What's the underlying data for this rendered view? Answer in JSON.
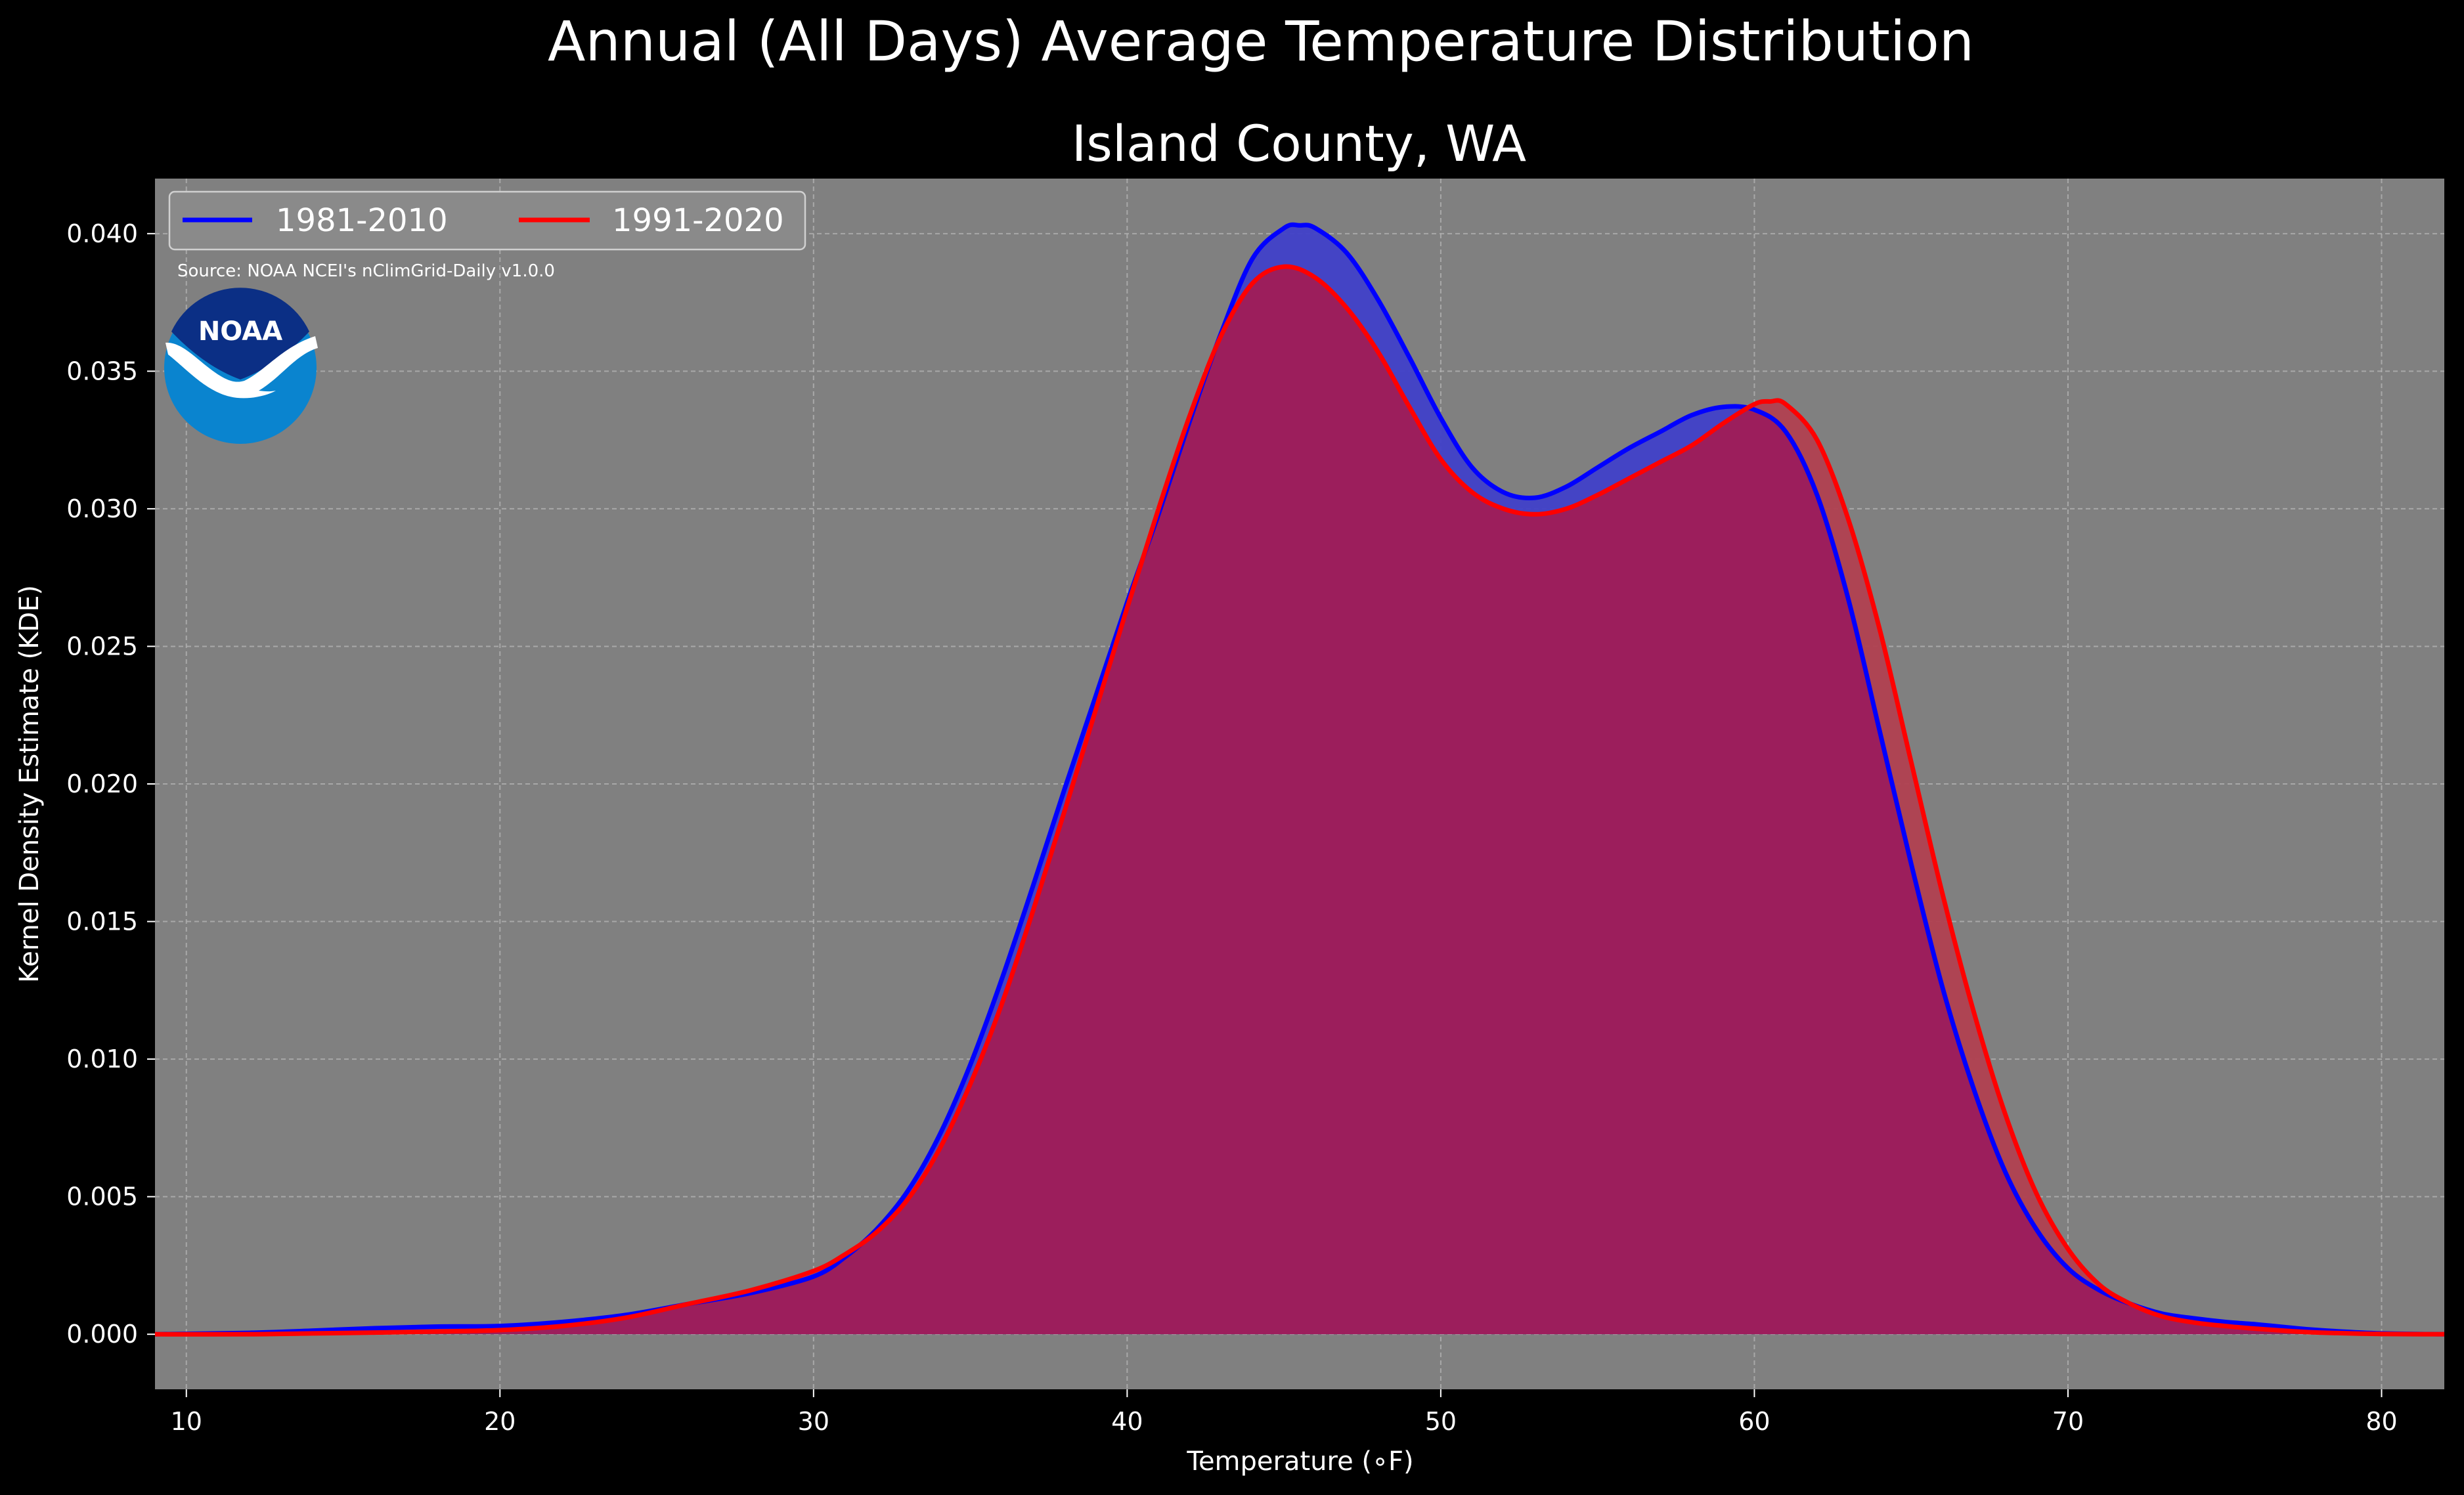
{
  "figure": {
    "title": "Annual (All Days) Average Temperature Distribution",
    "subtitle": "Island County, WA",
    "source": "Source: NOAA NCEI's nClimGrid-Daily v1.0.0",
    "logo_text": "NOAA"
  },
  "colors": {
    "figure_background": "#000000",
    "plot_background": "#808080",
    "grid": "#b3b3b3",
    "series_1981_2010": "#0000ff",
    "series_1991_2020": "#ff0000",
    "fill_1981_2010": "#4040c8",
    "fill_1991_2020": "#b04050",
    "overlap_fill": "#9c1e5c",
    "noaa_blue_light": "#0a84cf",
    "noaa_blue_dark": "#0b2f85"
  },
  "chart_data": {
    "type": "area",
    "title": "Island County, WA",
    "xlabel": "Temperature ($^\\circ$F)",
    "xlabel_display": "Temperature (∘F)",
    "ylabel": "Kernel Density Estimate (KDE)",
    "xlim": [
      9,
      82
    ],
    "ylim": [
      -0.002,
      0.042
    ],
    "x_ticks": [
      10,
      20,
      30,
      40,
      50,
      60,
      70,
      80
    ],
    "x_tick_labels": [
      "10",
      "20",
      "30",
      "40",
      "50",
      "60",
      "70",
      "80"
    ],
    "y_ticks": [
      0.0,
      0.005,
      0.01,
      0.015,
      0.02,
      0.025,
      0.03,
      0.035,
      0.04
    ],
    "y_tick_labels": [
      "0.000",
      "0.005",
      "0.010",
      "0.015",
      "0.020",
      "0.025",
      "0.030",
      "0.035",
      "0.040"
    ],
    "grid": true,
    "legend_position": "top-left",
    "legend_columns": 2,
    "series": [
      {
        "name": "1981-2010",
        "color": "#0000ff",
        "points": [
          [
            9,
            0.0
          ],
          [
            12,
            5e-05
          ],
          [
            14,
            0.00013
          ],
          [
            16,
            0.00022
          ],
          [
            18,
            0.00028
          ],
          [
            20,
            0.0003
          ],
          [
            22,
            0.00045
          ],
          [
            24,
            0.0007
          ],
          [
            26,
            0.0011
          ],
          [
            28,
            0.0015
          ],
          [
            30,
            0.0021
          ],
          [
            31,
            0.0028
          ],
          [
            32,
            0.0038
          ],
          [
            33,
            0.0052
          ],
          [
            34,
            0.0072
          ],
          [
            35,
            0.0098
          ],
          [
            36,
            0.0129
          ],
          [
            37,
            0.0163
          ],
          [
            38,
            0.0198
          ],
          [
            39,
            0.0232
          ],
          [
            40,
            0.0266
          ],
          [
            41,
            0.0298
          ],
          [
            42,
            0.0332
          ],
          [
            43,
            0.0364
          ],
          [
            44,
            0.0391
          ],
          [
            45,
            0.0402
          ],
          [
            45.5,
            0.0403
          ],
          [
            46,
            0.0402
          ],
          [
            47,
            0.0393
          ],
          [
            48,
            0.0376
          ],
          [
            49,
            0.0355
          ],
          [
            50,
            0.0333
          ],
          [
            51,
            0.0315
          ],
          [
            52,
            0.0306
          ],
          [
            53,
            0.0304
          ],
          [
            54,
            0.0308
          ],
          [
            55,
            0.0315
          ],
          [
            56,
            0.0322
          ],
          [
            57,
            0.0328
          ],
          [
            58,
            0.0334
          ],
          [
            59,
            0.0337
          ],
          [
            60,
            0.0336
          ],
          [
            61,
            0.0328
          ],
          [
            62,
            0.0305
          ],
          [
            63,
            0.0267
          ],
          [
            64,
            0.0219
          ],
          [
            65,
            0.0171
          ],
          [
            66,
            0.0126
          ],
          [
            67,
            0.0089
          ],
          [
            68,
            0.0059
          ],
          [
            69,
            0.0038
          ],
          [
            70,
            0.0024
          ],
          [
            71,
            0.0016
          ],
          [
            72,
            0.0011
          ],
          [
            73,
            0.00075
          ],
          [
            74,
            0.00058
          ],
          [
            75,
            0.00045
          ],
          [
            76,
            0.00036
          ],
          [
            77,
            0.00025
          ],
          [
            78,
            0.00015
          ],
          [
            80,
            3e-05
          ],
          [
            82,
            0.0
          ]
        ]
      },
      {
        "name": "1991-2020",
        "color": "#ff0000",
        "points": [
          [
            9,
            0.0
          ],
          [
            12,
            0.0
          ],
          [
            14,
            3e-05
          ],
          [
            16,
            6e-05
          ],
          [
            18,
            0.0001
          ],
          [
            20,
            0.00015
          ],
          [
            22,
            0.0003
          ],
          [
            24,
            0.0006
          ],
          [
            26,
            0.0011
          ],
          [
            28,
            0.0016
          ],
          [
            30,
            0.0023
          ],
          [
            31,
            0.0029
          ],
          [
            32,
            0.0037
          ],
          [
            33,
            0.0049
          ],
          [
            34,
            0.0067
          ],
          [
            35,
            0.0091
          ],
          [
            36,
            0.012
          ],
          [
            37,
            0.0154
          ],
          [
            38,
            0.019
          ],
          [
            39,
            0.0227
          ],
          [
            40,
            0.0264
          ],
          [
            41,
            0.03
          ],
          [
            42,
            0.0334
          ],
          [
            43,
            0.0363
          ],
          [
            44,
            0.0382
          ],
          [
            45,
            0.0388
          ],
          [
            46,
            0.0384
          ],
          [
            47,
            0.0373
          ],
          [
            48,
            0.0357
          ],
          [
            49,
            0.0337
          ],
          [
            50,
            0.0318
          ],
          [
            51,
            0.0306
          ],
          [
            52,
            0.03
          ],
          [
            53,
            0.0298
          ],
          [
            54,
            0.03
          ],
          [
            55,
            0.0305
          ],
          [
            56,
            0.0311
          ],
          [
            57,
            0.0317
          ],
          [
            58,
            0.0323
          ],
          [
            59,
            0.0331
          ],
          [
            60,
            0.0338
          ],
          [
            60.5,
            0.0339
          ],
          [
            61,
            0.0338
          ],
          [
            62,
            0.0325
          ],
          [
            63,
            0.0296
          ],
          [
            64,
            0.0256
          ],
          [
            65,
            0.0208
          ],
          [
            66,
            0.016
          ],
          [
            67,
            0.0117
          ],
          [
            68,
            0.008
          ],
          [
            69,
            0.0051
          ],
          [
            70,
            0.0031
          ],
          [
            71,
            0.0018
          ],
          [
            72,
            0.0011
          ],
          [
            73,
            0.00065
          ],
          [
            74,
            0.00043
          ],
          [
            75,
            0.0003
          ],
          [
            76,
            0.0002
          ],
          [
            77,
            0.00012
          ],
          [
            78,
            6e-05
          ],
          [
            80,
            1e-05
          ],
          [
            82,
            0.0
          ]
        ]
      }
    ]
  }
}
